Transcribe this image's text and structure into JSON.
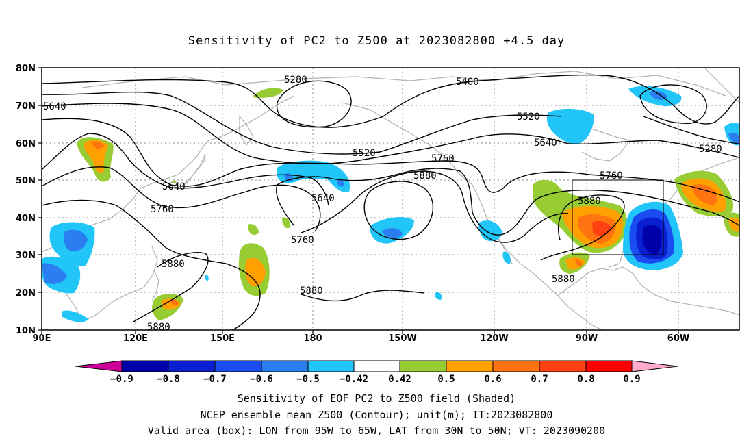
{
  "title": "Sensitivity of PC2 to Z500 at 2023082800 +4.5 day",
  "map": {
    "lon_labels": [
      "90E",
      "120E",
      "150E",
      "180",
      "150W",
      "120W",
      "90W",
      "60W"
    ],
    "lat_labels": [
      "80N",
      "70N",
      "60N",
      "50N",
      "40N",
      "30N",
      "20N",
      "10N"
    ],
    "contour_labels": [
      "5280",
      "5400",
      "5640",
      "5520",
      "5640",
      "5760",
      "5520",
      "5640",
      "5880",
      "5760",
      "5640",
      "5760",
      "5880",
      "5760",
      "5880",
      "5880",
      "5880",
      "5880",
      "5280"
    ],
    "valid_box": {
      "lon": [
        -95,
        -65
      ],
      "lat": [
        30,
        50
      ]
    }
  },
  "colorbar": {
    "ticks": [
      "−0.9",
      "−0.8",
      "−0.7",
      "−0.6",
      "−0.5",
      "−0.42",
      "0.42",
      "0.5",
      "0.6",
      "0.7",
      "0.8",
      "0.9"
    ],
    "colors": [
      "#cc0099",
      "#0000aa",
      "#0a1fd0",
      "#1a4cf0",
      "#2a7ef0",
      "#22c5f8",
      "#ffffff",
      "#98cc33",
      "#ffa000",
      "#ff7410",
      "#ff4010",
      "#ff0000",
      "#ffaacc"
    ]
  },
  "captions": [
    "Sensitivity of EOF PC2 to Z500 field (Shaded)",
    "NCEP ensemble mean Z500 (Contour); unit(m); IT:2023082800",
    "Valid area (box): LON from 95W to 65W, LAT from 30N to 50N; VT: 2023090200"
  ]
}
